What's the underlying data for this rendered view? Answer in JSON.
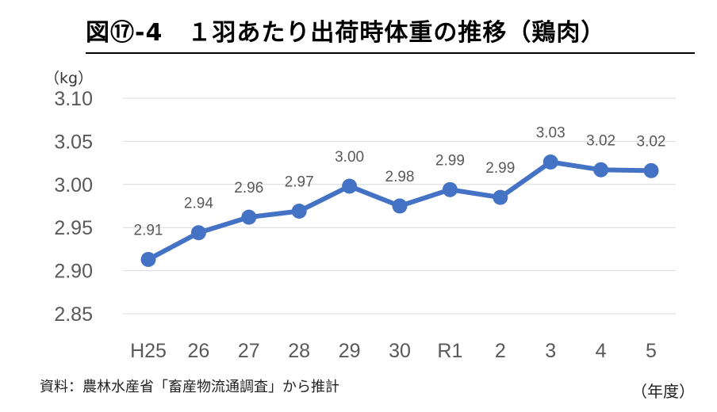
{
  "title": "図⑰-4　１羽あたり出荷時体重の推移（鶏肉）",
  "unit": "（kg）",
  "source": "資料：農林水産省「畜産物流通調査」から推計",
  "xunit": "（年度）",
  "colors": {
    "line": "#4472c4",
    "grid": "#d9d9d9",
    "text": "#595959"
  },
  "chart_data": {
    "type": "line",
    "title": "図⑰-4　１羽あたり出荷時体重の推移（鶏肉）",
    "ylabel": "（kg）",
    "xlabel": "（年度）",
    "ylim": [
      2.85,
      3.1
    ],
    "yticks": [
      "3.10",
      "3.05",
      "3.00",
      "2.95",
      "2.90",
      "2.85"
    ],
    "ytick_values": [
      3.1,
      3.05,
      3.0,
      2.95,
      2.9,
      2.85
    ],
    "categories": [
      "H25",
      "26",
      "27",
      "28",
      "29",
      "30",
      "R1",
      "2",
      "3",
      "4",
      "5"
    ],
    "series": [
      {
        "name": "１羽あたり出荷時体重",
        "values": [
          2.913,
          2.944,
          2.962,
          2.969,
          2.998,
          2.975,
          2.994,
          2.985,
          3.026,
          3.017,
          3.016
        ],
        "labels": [
          "2.91",
          "2.94",
          "2.96",
          "2.97",
          "3.00",
          "2.98",
          "2.99",
          "2.99",
          "3.03",
          "3.02",
          "3.02"
        ]
      }
    ],
    "grid": true,
    "legend": "none"
  }
}
